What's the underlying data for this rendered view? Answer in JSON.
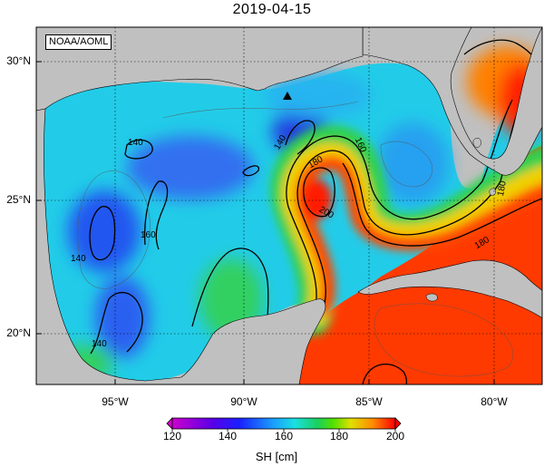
{
  "title": "2019-04-15",
  "watermark": "NOAA/AOML",
  "map": {
    "lon_range": [
      -98,
      -78
    ],
    "lat_range": [
      18,
      31
    ],
    "lat_ticks": [
      "30°N",
      "25°N",
      "20°N"
    ],
    "lon_ticks": [
      "95°W",
      "90°W",
      "85°W",
      "80°W"
    ],
    "contour_labels": [
      "140",
      "140",
      "140",
      "140",
      "160",
      "160",
      "180",
      "180",
      "200",
      "180"
    ],
    "marker": "triangle",
    "colors": {
      "land": "#c0c0c0",
      "sh_140": "#2450f0",
      "sh_160": "#22e0e0",
      "sh_170": "#30d050",
      "sh_190": "#ffaa00",
      "sh_200": "#ff1a00"
    }
  },
  "colorbar": {
    "ticks": [
      "120",
      "140",
      "160",
      "180",
      "200"
    ],
    "label": "SH [cm]",
    "min": 120,
    "max": 200
  }
}
